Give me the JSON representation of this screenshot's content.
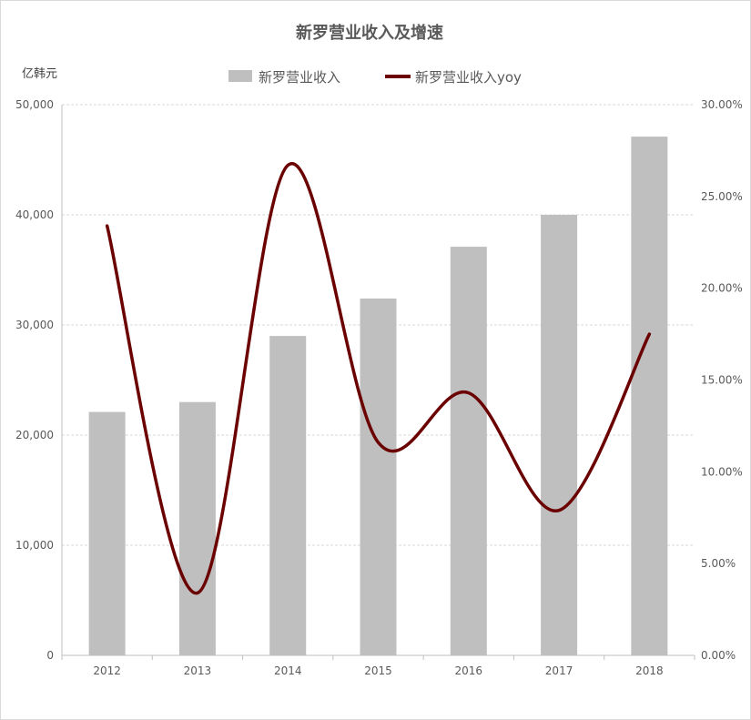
{
  "chart_data": {
    "type": "bar+line",
    "title": "新罗营业收入及增速",
    "unit_label": "亿韩元",
    "categories": [
      "2012",
      "2013",
      "2014",
      "2015",
      "2016",
      "2017",
      "2018"
    ],
    "series": [
      {
        "name": "新罗营业收入",
        "type": "bar",
        "axis": "left",
        "color": "#bfbfbf",
        "values": [
          22100,
          23000,
          29000,
          32400,
          37100,
          40000,
          47100
        ]
      },
      {
        "name": "新罗营业收入yoy",
        "type": "line",
        "smooth": true,
        "axis": "right",
        "color": "#6b0000",
        "values": [
          23.4,
          3.4,
          26.7,
          11.6,
          14.3,
          7.9,
          17.5
        ]
      }
    ],
    "left_axis": {
      "min": 0,
      "max": 50000,
      "ticks": [
        "0",
        "10,000",
        "20,000",
        "30,000",
        "40,000",
        "50,000"
      ]
    },
    "right_axis": {
      "min": 0,
      "max": 30,
      "ticks": [
        "0.00%",
        "5.00%",
        "10.00%",
        "15.00%",
        "20.00%",
        "25.00%",
        "30.00%"
      ]
    },
    "grid": true,
    "legend": "top"
  }
}
